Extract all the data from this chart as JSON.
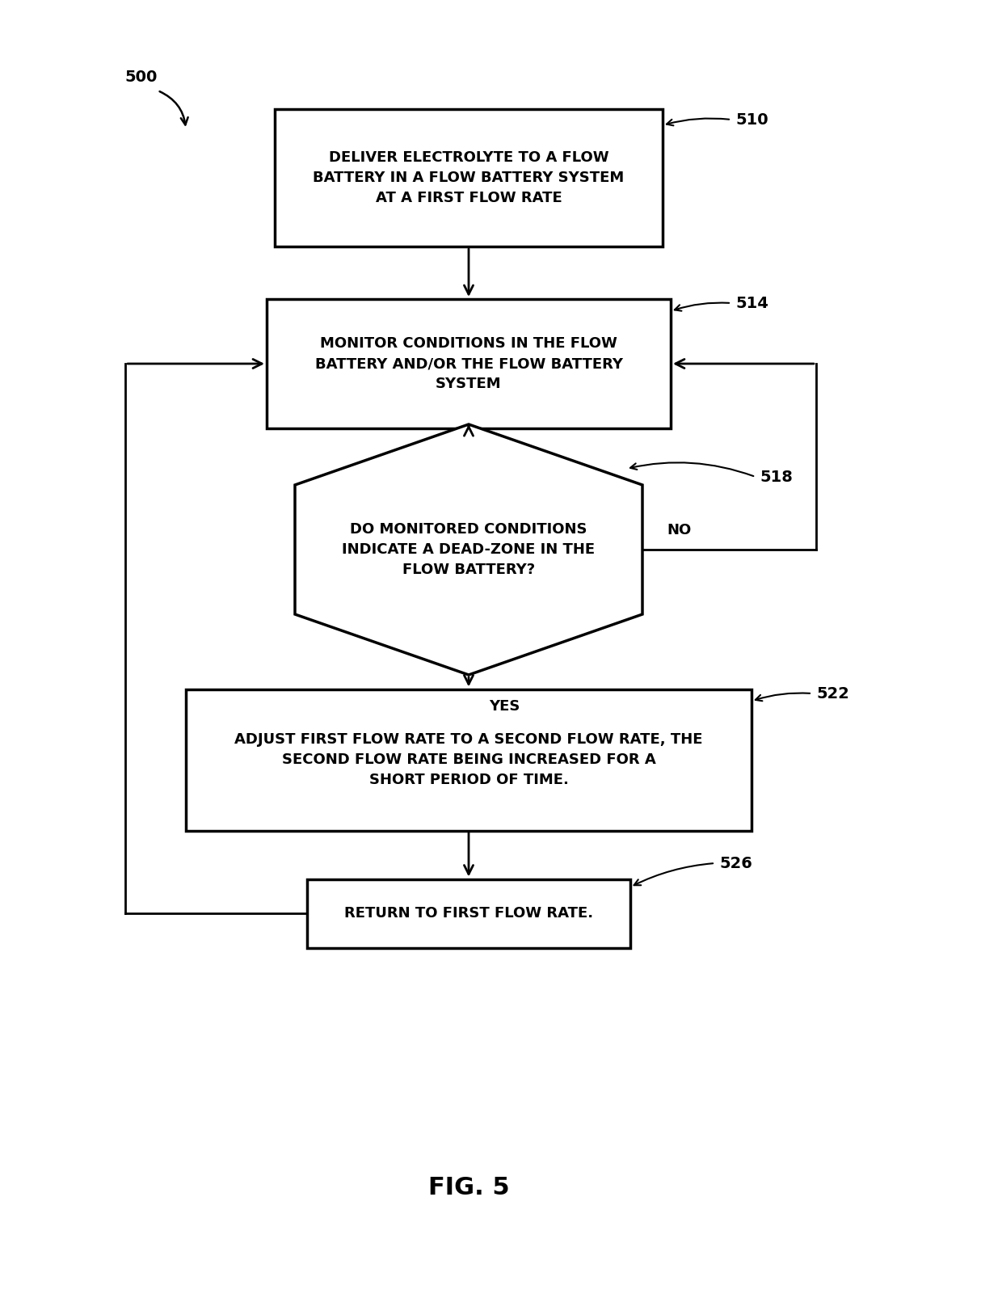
{
  "title": "FIG. 5",
  "label_500": "500",
  "label_510": "510",
  "label_514": "514",
  "label_518": "518",
  "label_522": "522",
  "label_526": "526",
  "box_510_text": "DELIVER ELECTROLYTE TO A FLOW\nBATTERY IN A FLOW BATTERY SYSTEM\nAT A FIRST FLOW RATE",
  "box_514_text": "MONITOR CONDITIONS IN THE FLOW\nBATTERY AND/OR THE FLOW BATTERY\nSYSTEM",
  "hex_518_text": "DO MONITORED CONDITIONS\nINDICATE A DEAD-ZONE IN THE\nFLOW BATTERY?",
  "box_522_text": "ADJUST FIRST FLOW RATE TO A SECOND FLOW RATE, THE\nSECOND FLOW RATE BEING INCREASED FOR A\nSHORT PERIOD OF TIME.",
  "box_526_text": "RETURN TO FIRST FLOW RATE.",
  "yes_label": "YES",
  "no_label": "NO",
  "bg_color": "#ffffff",
  "box_fill": "#ffffff",
  "box_edge": "#000000",
  "text_color": "#000000",
  "arrow_color": "#000000",
  "font_size": 13,
  "label_font_size": 14,
  "title_font_size": 22
}
